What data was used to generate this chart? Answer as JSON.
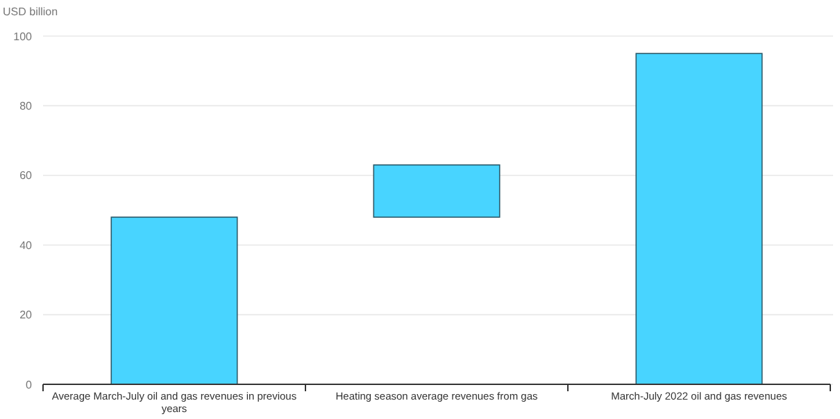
{
  "chart_data": {
    "type": "bar",
    "ylabel": "USD billion",
    "categories": [
      "Average March-July oil and gas revenues in previous years",
      "Heating season average revenues from gas",
      "March-July 2022 oil and gas revenues"
    ],
    "values": [
      48,
      15,
      95
    ],
    "base": [
      0,
      48,
      0
    ],
    "color": "#48d4ff",
    "ylim": [
      0,
      100
    ],
    "yticks": [
      0,
      20,
      40,
      60,
      80,
      100
    ],
    "grid": "y"
  }
}
